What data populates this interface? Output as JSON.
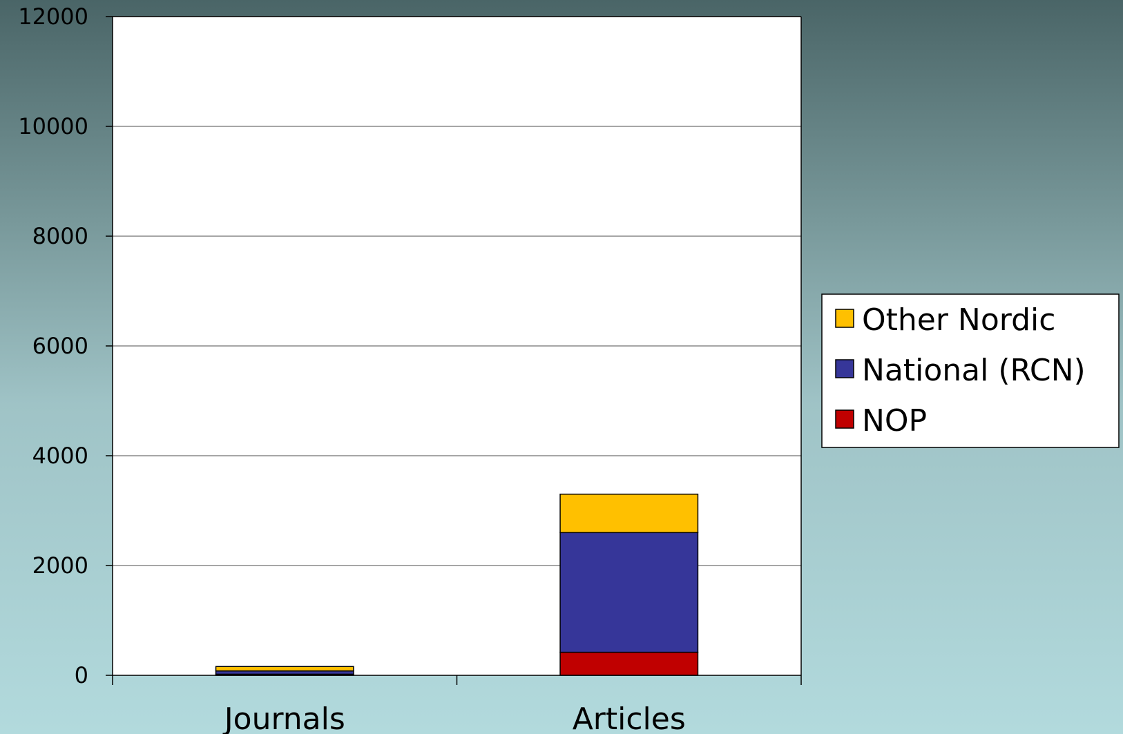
{
  "chart_data": {
    "type": "bar",
    "stacked": true,
    "categories": [
      "Journals",
      "Articles"
    ],
    "series": [
      {
        "name": "NOP",
        "color": "#c00000",
        "values": [
          20,
          420
        ]
      },
      {
        "name": "National (RCN)",
        "color": "#363699",
        "values": [
          60,
          2180
        ]
      },
      {
        "name": "Other Nordic",
        "color": "#ffc000",
        "values": [
          80,
          700
        ]
      }
    ],
    "ylim": [
      0,
      12000
    ],
    "yticks": [
      0,
      2000,
      4000,
      6000,
      8000,
      10000,
      12000
    ],
    "grid": true,
    "legend": "right",
    "legend_order": [
      "Other Nordic",
      "National (RCN)",
      "NOP"
    ]
  }
}
